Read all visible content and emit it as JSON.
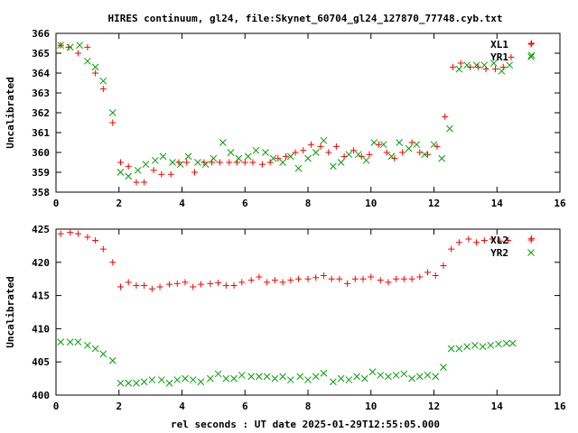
{
  "chart_data": [
    {
      "type": "scatter",
      "title": "HIRES continuum, gl24, file:Skynet_60704_gl24_127870_77748.cyb.txt",
      "ylabel": "Uncalibrated",
      "xlabel": "",
      "xlim": [
        0,
        16
      ],
      "ylim": [
        358,
        366
      ],
      "xticks": [
        "0",
        "2",
        "4",
        "6",
        "8",
        "10",
        "12",
        "14",
        "16"
      ],
      "yticks": [
        "358",
        "359",
        "360",
        "361",
        "362",
        "363",
        "364",
        "365",
        "366"
      ],
      "legend_position": "top-right",
      "series": [
        {
          "name": "XL1",
          "marker": "plus",
          "color": "#ff0000",
          "x": [
            0.15,
            0.4,
            0.7,
            1.0,
            1.25,
            1.5,
            1.8,
            2.05,
            2.3,
            2.55,
            2.8,
            3.1,
            3.35,
            3.65,
            3.9,
            4.15,
            4.4,
            4.7,
            4.95,
            5.2,
            5.5,
            5.75,
            6.0,
            6.25,
            6.55,
            6.8,
            7.05,
            7.3,
            7.6,
            7.85,
            8.1,
            8.4,
            8.65,
            8.9,
            9.15,
            9.45,
            9.7,
            9.95,
            10.25,
            10.5,
            10.75,
            11.0,
            11.3,
            11.55,
            11.8,
            12.1,
            12.35,
            12.6,
            12.85,
            13.15,
            13.4,
            13.65,
            13.95,
            14.2,
            14.45,
            15.1
          ],
          "y": [
            365.4,
            365.3,
            365.0,
            365.3,
            364.0,
            363.2,
            361.5,
            359.5,
            359.3,
            358.5,
            358.5,
            359.1,
            358.9,
            358.9,
            359.5,
            359.5,
            359.0,
            359.5,
            359.5,
            359.5,
            359.5,
            359.5,
            359.5,
            359.5,
            359.4,
            359.5,
            359.7,
            359.8,
            360.0,
            360.1,
            360.4,
            360.3,
            360.0,
            360.3,
            359.8,
            360.1,
            359.8,
            359.9,
            360.4,
            360.0,
            359.7,
            360.0,
            360.5,
            360.0,
            359.9,
            360.3,
            361.8,
            364.3,
            364.5,
            364.3,
            364.3,
            364.2,
            364.2,
            364.3,
            364.8,
            365.5
          ]
        },
        {
          "name": "YR1",
          "marker": "cross",
          "color": "#00a000",
          "x": [
            0.15,
            0.45,
            0.75,
            1.0,
            1.25,
            1.5,
            1.8,
            2.05,
            2.3,
            2.6,
            2.85,
            3.15,
            3.4,
            3.7,
            3.95,
            4.2,
            4.5,
            4.75,
            5.0,
            5.3,
            5.55,
            5.8,
            6.1,
            6.35,
            6.65,
            6.9,
            7.2,
            7.45,
            7.7,
            8.0,
            8.25,
            8.5,
            8.8,
            9.05,
            9.3,
            9.6,
            9.85,
            10.1,
            10.4,
            10.65,
            10.9,
            11.2,
            11.45,
            11.7,
            12.0,
            12.25,
            12.5,
            12.8,
            13.05,
            13.35,
            13.6,
            13.9,
            14.15,
            14.4,
            15.1
          ],
          "y": [
            365.4,
            365.3,
            365.4,
            364.6,
            364.3,
            363.6,
            362.0,
            359.0,
            358.8,
            359.1,
            359.4,
            359.6,
            359.8,
            359.5,
            359.4,
            359.8,
            359.5,
            359.4,
            359.7,
            360.5,
            360.0,
            359.7,
            359.8,
            360.1,
            360.0,
            359.7,
            359.5,
            359.8,
            359.2,
            359.7,
            360.0,
            360.6,
            359.3,
            359.5,
            359.9,
            359.9,
            359.6,
            360.5,
            360.4,
            359.8,
            360.5,
            360.2,
            360.4,
            359.9,
            360.4,
            359.7,
            361.2,
            364.2,
            364.4,
            364.4,
            364.4,
            364.5,
            364.1,
            364.4,
            364.9
          ]
        }
      ]
    },
    {
      "type": "scatter",
      "title": "",
      "ylabel": "Uncalibrated",
      "xlabel": "rel seconds : UT date 2025-01-29T12:55:05.000",
      "xlim": [
        0,
        16
      ],
      "ylim": [
        400,
        425
      ],
      "xticks": [
        "0",
        "2",
        "4",
        "6",
        "8",
        "10",
        "12",
        "14",
        "16"
      ],
      "yticks": [
        "400",
        "405",
        "410",
        "415",
        "420",
        "425"
      ],
      "legend_position": "top-right",
      "series": [
        {
          "name": "XL2",
          "marker": "plus",
          "color": "#ff0000",
          "x": [
            0.15,
            0.45,
            0.7,
            1.0,
            1.25,
            1.5,
            1.8,
            2.05,
            2.3,
            2.55,
            2.8,
            3.05,
            3.3,
            3.6,
            3.85,
            4.1,
            4.35,
            4.6,
            4.9,
            5.15,
            5.4,
            5.65,
            5.9,
            6.2,
            6.45,
            6.7,
            6.95,
            7.2,
            7.45,
            7.7,
            8.0,
            8.25,
            8.5,
            8.75,
            9.0,
            9.25,
            9.5,
            9.75,
            10.0,
            10.3,
            10.55,
            10.8,
            11.05,
            11.3,
            11.55,
            11.8,
            12.05,
            12.3,
            12.55,
            12.8,
            13.1,
            13.35,
            13.6,
            13.85,
            14.1,
            14.35,
            15.1
          ],
          "y": [
            424.3,
            424.5,
            424.3,
            423.8,
            423.3,
            422.0,
            420.0,
            416.3,
            417.0,
            416.5,
            416.5,
            416.0,
            416.3,
            416.7,
            416.8,
            417.0,
            416.3,
            416.7,
            416.8,
            416.9,
            416.5,
            416.5,
            417.0,
            417.3,
            417.8,
            417.0,
            417.3,
            417.0,
            417.3,
            417.5,
            417.5,
            417.7,
            418.0,
            417.5,
            417.5,
            416.8,
            417.5,
            417.5,
            417.8,
            417.3,
            417.0,
            417.5,
            417.5,
            417.5,
            417.8,
            418.5,
            418.0,
            419.5,
            422.0,
            423.0,
            423.5,
            423.0,
            423.3,
            423.5,
            423.2,
            423.3,
            423.6
          ]
        },
        {
          "name": "YR2",
          "marker": "cross",
          "color": "#00a000",
          "x": [
            0.15,
            0.45,
            0.7,
            1.0,
            1.25,
            1.5,
            1.8,
            2.05,
            2.3,
            2.55,
            2.8,
            3.05,
            3.35,
            3.6,
            3.85,
            4.1,
            4.35,
            4.6,
            4.9,
            5.15,
            5.4,
            5.65,
            5.9,
            6.2,
            6.45,
            6.7,
            6.95,
            7.2,
            7.45,
            7.75,
            8.0,
            8.25,
            8.5,
            8.8,
            9.05,
            9.3,
            9.55,
            9.8,
            10.05,
            10.3,
            10.55,
            10.8,
            11.05,
            11.3,
            11.55,
            11.8,
            12.05,
            12.3,
            12.55,
            12.8,
            13.05,
            13.3,
            13.55,
            13.8,
            14.05,
            14.3,
            14.5
          ],
          "y": [
            408.0,
            408.0,
            408.0,
            407.5,
            407.0,
            406.2,
            405.2,
            401.8,
            401.8,
            401.8,
            402.0,
            402.3,
            402.3,
            401.8,
            402.3,
            402.5,
            402.3,
            402.0,
            402.5,
            403.2,
            402.5,
            402.5,
            403.0,
            402.8,
            402.8,
            402.8,
            402.5,
            402.8,
            402.3,
            402.8,
            402.3,
            402.8,
            403.3,
            402.0,
            402.5,
            402.3,
            402.8,
            402.5,
            403.5,
            403.0,
            402.8,
            403.0,
            403.2,
            402.5,
            402.8,
            403.0,
            402.8,
            404.2,
            407.0,
            407.0,
            407.3,
            407.5,
            407.3,
            407.5,
            407.7,
            407.8,
            407.8
          ]
        }
      ]
    }
  ]
}
